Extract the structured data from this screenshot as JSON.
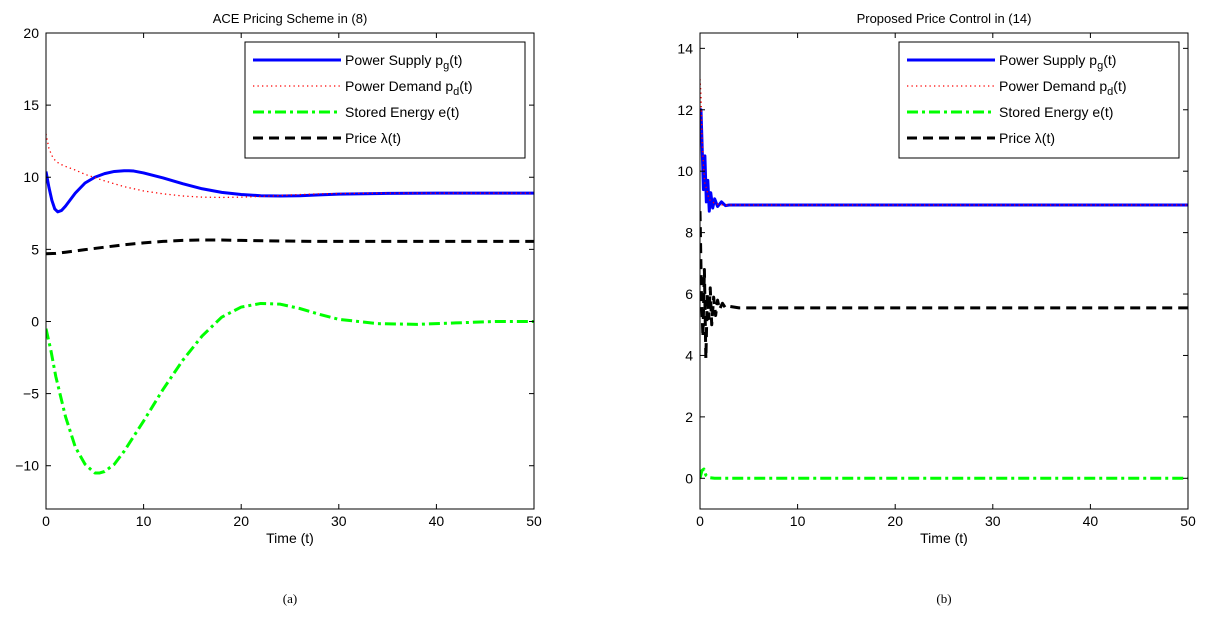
{
  "chart_data": [
    {
      "type": "line",
      "title": "ACE Pricing Scheme in (8)",
      "xlabel": "Time (t)",
      "ylabel": "",
      "xlim": [
        0,
        50
      ],
      "ylim": [
        -13,
        20
      ],
      "xticks": [
        0,
        10,
        20,
        30,
        40,
        50
      ],
      "yticks": [
        -10,
        -5,
        0,
        5,
        10,
        15,
        20
      ],
      "grid": false,
      "legend_position": "top-right",
      "caption": "(a)",
      "series": [
        {
          "name_main": "Power Supply p",
          "name_sub": "g",
          "name_tail": "(t)",
          "color": "#0000ff",
          "style": "solid",
          "x": [
            0,
            0.3,
            0.6,
            0.9,
            1.2,
            1.6,
            2,
            3,
            4,
            5,
            6,
            7,
            8,
            8.5,
            9,
            10,
            12,
            14,
            16,
            18,
            20,
            22,
            24,
            26,
            28,
            30,
            35,
            40,
            45,
            50
          ],
          "y": [
            10.4,
            9.3,
            8.4,
            7.8,
            7.6,
            7.7,
            8.0,
            8.9,
            9.6,
            10.0,
            10.25,
            10.4,
            10.45,
            10.45,
            10.43,
            10.3,
            9.95,
            9.55,
            9.2,
            8.95,
            8.8,
            8.72,
            8.7,
            8.72,
            8.78,
            8.83,
            8.88,
            8.9,
            8.9,
            8.9
          ]
        },
        {
          "name_main": "Power Demand p",
          "name_sub": "d",
          "name_tail": "(t)",
          "color": "#ff0000",
          "style": "dotted",
          "x": [
            0,
            0.3,
            0.6,
            1,
            1.5,
            2,
            3,
            4,
            6,
            8,
            10,
            12,
            14,
            16,
            18,
            20,
            22,
            24,
            26,
            28,
            30,
            35,
            40,
            45,
            50
          ],
          "y": [
            13.0,
            12.0,
            11.5,
            11.1,
            10.9,
            10.75,
            10.5,
            10.2,
            9.75,
            9.35,
            9.05,
            8.85,
            8.7,
            8.62,
            8.6,
            8.62,
            8.67,
            8.73,
            8.8,
            8.85,
            8.87,
            8.9,
            8.9,
            8.9,
            8.9
          ]
        },
        {
          "name_main": "Stored Energy e(t)",
          "name_sub": "",
          "name_tail": "",
          "color": "#00ff00",
          "style": "dashdot",
          "x": [
            0,
            0.5,
            1,
            2,
            3,
            4,
            5,
            5.5,
            6,
            7,
            8,
            10,
            12,
            14,
            16,
            18,
            20,
            22,
            24,
            26,
            28,
            30,
            34,
            38,
            42,
            46,
            50
          ],
          "y": [
            -0.5,
            -2.0,
            -3.8,
            -6.6,
            -8.7,
            -9.9,
            -10.5,
            -10.5,
            -10.4,
            -9.9,
            -9.0,
            -6.9,
            -4.7,
            -2.7,
            -1.0,
            0.3,
            1.0,
            1.25,
            1.2,
            0.9,
            0.5,
            0.15,
            -0.15,
            -0.2,
            -0.1,
            0.0,
            0.0
          ]
        },
        {
          "name_main": "Price λ(t)",
          "name_sub": "",
          "name_tail": "",
          "color": "#000000",
          "style": "dashed",
          "x": [
            0,
            1,
            2,
            4,
            6,
            8,
            10,
            12,
            14,
            16,
            18,
            20,
            24,
            28,
            32,
            36,
            40,
            45,
            50
          ],
          "y": [
            4.7,
            4.72,
            4.8,
            4.98,
            5.15,
            5.32,
            5.45,
            5.55,
            5.62,
            5.65,
            5.65,
            5.62,
            5.58,
            5.55,
            5.55,
            5.55,
            5.55,
            5.55,
            5.55
          ]
        }
      ]
    },
    {
      "type": "line",
      "title": "Proposed Price Control in (14)",
      "xlabel": "Time (t)",
      "ylabel": "",
      "xlim": [
        0,
        50
      ],
      "ylim": [
        -1,
        14.5
      ],
      "xticks": [
        0,
        10,
        20,
        30,
        40,
        50
      ],
      "yticks": [
        0,
        2,
        4,
        6,
        8,
        10,
        12,
        14
      ],
      "grid": false,
      "legend_position": "top-right",
      "caption": "(b)",
      "series": [
        {
          "name_main": "Power Supply p",
          "name_sub": "g",
          "name_tail": "(t)",
          "color": "#0000ff",
          "style": "solid",
          "x": [
            0,
            0.1,
            0.2,
            0.35,
            0.5,
            0.65,
            0.8,
            0.95,
            1.1,
            1.3,
            1.5,
            1.8,
            2.2,
            2.6,
            3,
            5,
            10,
            20,
            30,
            40,
            50
          ],
          "y": [
            11.3,
            12.0,
            11.0,
            9.4,
            10.5,
            9.0,
            9.7,
            8.7,
            9.3,
            8.8,
            9.1,
            8.85,
            9.0,
            8.88,
            8.9,
            8.9,
            8.9,
            8.9,
            8.9,
            8.9,
            8.9
          ]
        },
        {
          "name_main": "Power Demand p",
          "name_sub": "d",
          "name_tail": "(t)",
          "color": "#ff0000",
          "style": "dotted",
          "x": [
            0,
            0.1,
            0.2,
            0.35,
            0.5,
            0.7,
            0.9,
            1.2,
            1.6,
            2,
            3,
            5,
            10,
            20,
            30,
            40,
            50
          ],
          "y": [
            13.0,
            12.5,
            11.2,
            10.2,
            9.6,
            9.4,
            9.1,
            9.0,
            8.95,
            8.9,
            8.9,
            8.9,
            8.9,
            8.9,
            8.9,
            8.9,
            8.9
          ]
        },
        {
          "name_main": "Stored Energy e(t)",
          "name_sub": "",
          "name_tail": "",
          "color": "#00ff00",
          "style": "dashdot",
          "x": [
            0,
            0.2,
            0.4,
            0.6,
            0.8,
            1.0,
            1.5,
            2,
            3,
            5,
            10,
            20,
            30,
            40,
            50
          ],
          "y": [
            0.0,
            0.25,
            0.3,
            0.1,
            0.05,
            0.02,
            0.0,
            0.0,
            0.0,
            0.0,
            0.0,
            0.0,
            0.0,
            0.0,
            0.0
          ]
        },
        {
          "name_main": "Price λ(t)",
          "name_sub": "",
          "name_tail": "",
          "color": "#000000",
          "style": "dashed",
          "x": [
            0,
            0.15,
            0.3,
            0.45,
            0.6,
            0.75,
            0.9,
            1.05,
            1.2,
            1.4,
            1.6,
            1.8,
            2.0,
            2.3,
            2.6,
            3,
            4,
            5,
            10,
            20,
            30,
            40,
            50
          ],
          "y": [
            8.7,
            6.0,
            4.6,
            6.8,
            3.9,
            6.0,
            5.2,
            6.2,
            5.0,
            5.9,
            5.3,
            5.8,
            5.5,
            5.7,
            5.55,
            5.6,
            5.55,
            5.55,
            5.55,
            5.55,
            5.55,
            5.55,
            5.55
          ]
        }
      ]
    }
  ]
}
